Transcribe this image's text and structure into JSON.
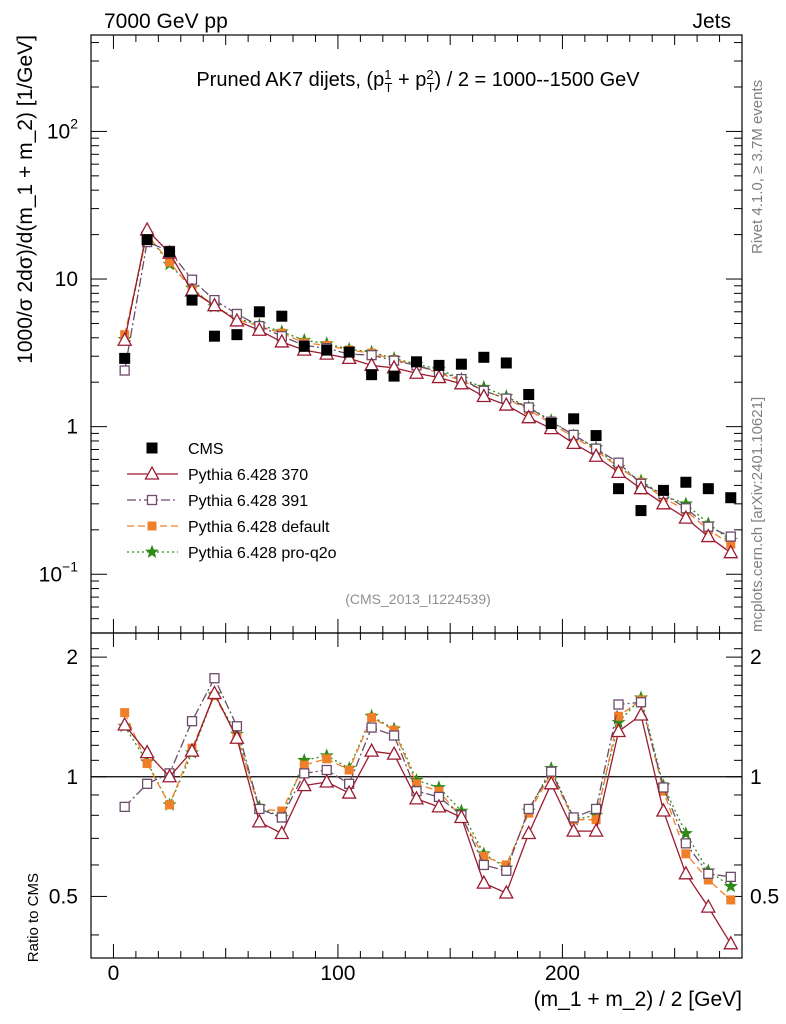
{
  "header": {
    "left": "7000 GeV pp",
    "right": "Jets"
  },
  "side": {
    "rivet": "Rivet 4.1.0, ≥ 3.7M events",
    "mcplots": "mcplots.cern.ch [arXiv:2401.10621]"
  },
  "chart_data": {
    "type": "scatter",
    "title_parts": [
      "Pruned AK7 dijets, (p",
      "1",
      "T",
      " + p",
      "2",
      "T",
      ") / 2 = 1000--1500 GeV"
    ],
    "analysis_id": "(CMS_2013_I1224539)",
    "xlabel": "(m_1 + m_2) / 2 [GeV]",
    "ylabel": "1000/σ   2dσ)/d(m_1 + m_2) [1/GeV]",
    "ratio_ylabel": "Ratio to CMS",
    "xlim": [
      -10,
      280
    ],
    "ylim": [
      0.04,
      450
    ],
    "ratio_ylim": [
      0.35,
      2.3
    ],
    "x_ticks": [
      0,
      100,
      200
    ],
    "y_tick_labels": [
      {
        "value": 100,
        "base": "10",
        "exp": "2"
      },
      {
        "value": 10,
        "base": "10",
        "exp": ""
      },
      {
        "value": 1,
        "base": "1",
        "exp": ""
      },
      {
        "value": 0.1,
        "base": "10",
        "exp": "−1"
      }
    ],
    "ratio_ticks": [
      0.5,
      1,
      2
    ],
    "x": [
      5,
      15,
      25,
      35,
      45,
      55,
      65,
      75,
      85,
      95,
      105,
      115,
      125,
      135,
      145,
      155,
      165,
      175,
      185,
      195,
      205,
      215,
      225,
      235,
      245,
      255,
      265,
      275
    ],
    "series": [
      {
        "name": "CMS",
        "color": "#000000",
        "marker": "filled-square",
        "values": [
          2.9,
          18.5,
          15.3,
          7.2,
          4.1,
          4.2,
          6.0,
          5.6,
          3.5,
          3.3,
          3.2,
          2.25,
          2.2,
          2.75,
          2.6,
          2.65,
          2.95,
          2.7,
          1.65,
          1.05,
          1.13,
          0.87,
          0.38,
          0.27,
          0.37,
          0.42,
          0.38,
          0.33
        ]
      },
      {
        "name": "Pythia 6.428 370",
        "color": "#9b1b30",
        "marker": "open-triangle",
        "line": "solid",
        "values": [
          3.85,
          21.5,
          15.0,
          8.3,
          6.6,
          5.2,
          4.5,
          3.75,
          3.3,
          3.1,
          2.9,
          2.6,
          2.5,
          2.3,
          2.15,
          1.95,
          1.6,
          1.4,
          1.15,
          0.97,
          0.77,
          0.63,
          0.49,
          0.38,
          0.3,
          0.24,
          0.18,
          0.14
        ]
      },
      {
        "name": "Pythia 6.428 391",
        "color": "#6b4c6b",
        "marker": "open-square",
        "line": "dashdot",
        "values": [
          2.4,
          17.8,
          15.5,
          9.9,
          7.2,
          5.8,
          4.8,
          4.1,
          3.55,
          3.4,
          3.1,
          3.05,
          2.8,
          2.6,
          2.35,
          2.1,
          1.75,
          1.55,
          1.35,
          1.08,
          0.88,
          0.71,
          0.57,
          0.41,
          0.35,
          0.28,
          0.21,
          0.18
        ]
      },
      {
        "name": "Pythia 6.428 default",
        "color": "#f07f2a",
        "marker": "filled-square-small",
        "line": "dashed",
        "values": [
          4.2,
          20.0,
          13.0,
          8.5,
          6.6,
          5.3,
          4.8,
          4.3,
          3.7,
          3.55,
          3.3,
          3.15,
          2.85,
          2.6,
          2.3,
          2.05,
          1.75,
          1.55,
          1.3,
          1.05,
          0.85,
          0.69,
          0.53,
          0.42,
          0.33,
          0.27,
          0.2,
          0.16
        ]
      },
      {
        "name": "Pythia 6.428 pro-q2o",
        "color": "#2e8b17",
        "marker": "star",
        "line": "dotted",
        "values": [
          3.9,
          20.2,
          12.6,
          8.7,
          6.5,
          5.4,
          4.9,
          4.4,
          3.85,
          3.65,
          3.35,
          3.2,
          2.9,
          2.65,
          2.45,
          2.1,
          1.85,
          1.6,
          1.35,
          1.1,
          0.87,
          0.72,
          0.53,
          0.43,
          0.34,
          0.3,
          0.22,
          0.17
        ]
      }
    ],
    "ratio_series": [
      {
        "name": "Pythia 6.428 370",
        "values": [
          1.35,
          1.15,
          1.0,
          1.16,
          1.62,
          1.25,
          0.77,
          0.72,
          0.95,
          0.97,
          0.91,
          1.16,
          1.14,
          0.88,
          0.84,
          0.79,
          0.54,
          0.51,
          0.72,
          0.96,
          0.73,
          0.73,
          1.3,
          1.43,
          0.82,
          0.57,
          0.47,
          0.38
        ]
      },
      {
        "name": "Pythia 6.428 391",
        "values": [
          0.84,
          0.96,
          1.02,
          1.38,
          1.77,
          1.34,
          0.83,
          0.79,
          1.02,
          1.04,
          0.96,
          1.33,
          1.27,
          0.92,
          0.89,
          0.8,
          0.6,
          0.58,
          0.83,
          1.03,
          0.79,
          0.83,
          1.52,
          1.54,
          0.94,
          0.68,
          0.57,
          0.56
        ]
      },
      {
        "name": "Pythia 6.428 default",
        "values": [
          1.45,
          1.08,
          0.85,
          1.18,
          1.6,
          1.26,
          0.83,
          0.82,
          1.07,
          1.11,
          1.04,
          1.41,
          1.31,
          0.96,
          0.92,
          0.79,
          0.63,
          0.6,
          0.81,
          1.02,
          0.78,
          0.78,
          1.42,
          1.56,
          0.92,
          0.64,
          0.55,
          0.49
        ]
      },
      {
        "name": "Pythia 6.428 pro-q2o",
        "values": [
          1.34,
          1.09,
          0.85,
          1.15,
          1.61,
          1.28,
          0.84,
          0.79,
          1.1,
          1.13,
          1.05,
          1.42,
          1.32,
          0.98,
          0.94,
          0.82,
          0.64,
          0.59,
          0.82,
          1.05,
          0.78,
          0.8,
          1.37,
          1.58,
          0.95,
          0.72,
          0.58,
          0.53
        ]
      }
    ]
  }
}
